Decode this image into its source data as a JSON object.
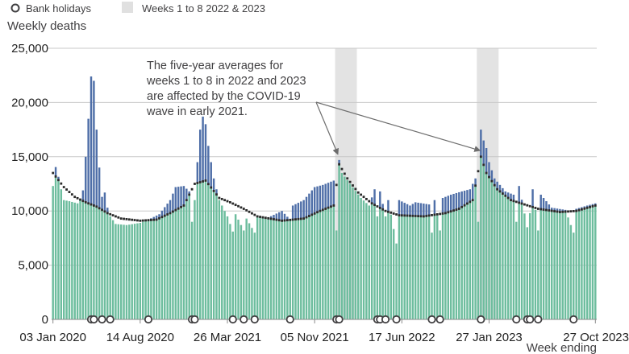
{
  "chart_data": {
    "type": "bar",
    "stacked": true,
    "ylabel": "Weekly deaths",
    "xlabel": "Week ending",
    "ylim": [
      0,
      25000
    ],
    "yticks": [
      0,
      5000,
      10000,
      15000,
      20000,
      25000
    ],
    "ytick_labels": [
      "0",
      "5,000",
      "10,000",
      "15,000",
      "20,000",
      "25,000"
    ],
    "x_start_date": "2020-01-03",
    "x_end_date": "2023-10-27",
    "xtick_labels": [
      {
        "label": "03 Jan 2020",
        "date": "2020-01-03"
      },
      {
        "label": "14 Aug 2020",
        "date": "2020-08-14"
      },
      {
        "label": "26 Mar 2021",
        "date": "2021-03-26"
      },
      {
        "label": "05 Nov 2021",
        "date": "2021-11-05"
      },
      {
        "label": "17 Jun 2022",
        "date": "2022-06-17"
      },
      {
        "label": "27 Jan 2023",
        "date": "2023-01-27"
      },
      {
        "label": "27 Oct 2023",
        "date": "2023-10-27"
      }
    ],
    "grid": true,
    "legend_position": "top-left",
    "legend": [
      {
        "label": "Bank holidays",
        "marker": "hollow-circle"
      },
      {
        "label": "Weeks 1 to 8 2022 & 2023",
        "marker": "grey-square"
      }
    ],
    "colors": {
      "base": "#6dbd9e",
      "excess": "#4f6fa8",
      "average": "#2a2a2a",
      "shade": "#e3e3e3",
      "gridline": "#c8c8c8"
    },
    "shaded_weeks": [
      {
        "start": "2021-12-31",
        "end": "2022-02-18"
      },
      {
        "start": "2022-12-30",
        "end": "2023-02-17"
      }
    ],
    "bank_holidays": [
      "2020-04-10",
      "2020-04-17",
      "2020-05-08",
      "2020-05-29",
      "2020-09-04",
      "2020-12-25",
      "2021-01-01",
      "2021-04-09",
      "2021-05-07",
      "2021-06-04",
      "2021-09-03",
      "2021-12-31",
      "2022-01-07",
      "2022-04-15",
      "2022-04-22",
      "2022-05-06",
      "2022-06-03",
      "2022-09-02",
      "2022-09-23",
      "2023-01-06",
      "2023-04-07",
      "2023-05-05",
      "2023-05-12",
      "2023-06-02",
      "2023-09-01"
    ],
    "deaths_anchors": [
      [
        "2020-01-03",
        12300
      ],
      [
        "2020-01-10",
        14050
      ],
      [
        "2020-01-17",
        13150
      ],
      [
        "2020-01-24",
        12000
      ],
      [
        "2020-01-31",
        11000
      ],
      [
        "2020-02-14",
        10900
      ],
      [
        "2020-03-06",
        10700
      ],
      [
        "2020-03-13",
        11000
      ],
      [
        "2020-03-20",
        11900
      ],
      [
        "2020-03-27",
        15000
      ],
      [
        "2020-04-03",
        18500
      ],
      [
        "2020-04-10",
        22400
      ],
      [
        "2020-04-17",
        22000
      ],
      [
        "2020-04-24",
        17500
      ],
      [
        "2020-05-01",
        14000
      ],
      [
        "2020-05-08",
        11300
      ],
      [
        "2020-05-15",
        11700
      ],
      [
        "2020-05-22",
        10300
      ],
      [
        "2020-05-29",
        9500
      ],
      [
        "2020-06-12",
        8800
      ],
      [
        "2020-07-10",
        8700
      ],
      [
        "2020-08-14",
        8900
      ],
      [
        "2020-09-04",
        9200
      ],
      [
        "2020-10-02",
        9700
      ],
      [
        "2020-10-30",
        11000
      ],
      [
        "2020-11-13",
        12200
      ],
      [
        "2020-12-04",
        12300
      ],
      [
        "2020-12-18",
        11800
      ],
      [
        "2020-12-25",
        9000
      ],
      [
        "2021-01-01",
        11000
      ],
      [
        "2021-01-08",
        14500
      ],
      [
        "2021-01-15",
        17500
      ],
      [
        "2021-01-22",
        18700
      ],
      [
        "2021-01-29",
        18000
      ],
      [
        "2021-02-05",
        16000
      ],
      [
        "2021-02-19",
        13000
      ],
      [
        "2021-03-05",
        11000
      ],
      [
        "2021-03-26",
        9500
      ],
      [
        "2021-04-09",
        8100
      ],
      [
        "2021-04-16",
        9700
      ],
      [
        "2021-05-07",
        8200
      ],
      [
        "2021-05-14",
        9300
      ],
      [
        "2021-06-04",
        8000
      ],
      [
        "2021-06-11",
        9500
      ],
      [
        "2021-07-09",
        9400
      ],
      [
        "2021-08-13",
        10000
      ],
      [
        "2021-09-03",
        9200
      ],
      [
        "2021-09-10",
        10500
      ],
      [
        "2021-10-08",
        11000
      ],
      [
        "2021-11-05",
        12200
      ],
      [
        "2021-11-26",
        12400
      ],
      [
        "2021-12-10",
        12600
      ],
      [
        "2021-12-24",
        12800
      ],
      [
        "2021-12-31",
        8200
      ],
      [
        "2022-01-07",
        14700
      ],
      [
        "2022-01-14",
        13500
      ],
      [
        "2022-02-04",
        12500
      ],
      [
        "2022-03-04",
        11200
      ],
      [
        "2022-03-25",
        10500
      ],
      [
        "2022-04-08",
        12000
      ],
      [
        "2022-04-15",
        9500
      ],
      [
        "2022-04-22",
        11800
      ],
      [
        "2022-05-06",
        9500
      ],
      [
        "2022-05-13",
        11000
      ],
      [
        "2022-06-03",
        7000
      ],
      [
        "2022-06-10",
        11000
      ],
      [
        "2022-07-08",
        10500
      ],
      [
        "2022-07-22",
        10800
      ],
      [
        "2022-08-26",
        10600
      ],
      [
        "2022-09-02",
        8000
      ],
      [
        "2022-09-09",
        11000
      ],
      [
        "2022-09-23",
        8200
      ],
      [
        "2022-09-30",
        11200
      ],
      [
        "2022-10-21",
        11500
      ],
      [
        "2022-11-18",
        11800
      ],
      [
        "2022-12-09",
        12000
      ],
      [
        "2022-12-23",
        13000
      ],
      [
        "2022-12-30",
        9000
      ],
      [
        "2023-01-06",
        17500
      ],
      [
        "2023-01-13",
        16500
      ],
      [
        "2023-01-20",
        15800
      ],
      [
        "2023-01-27",
        14500
      ],
      [
        "2023-02-10",
        13000
      ],
      [
        "2023-03-10",
        11800
      ],
      [
        "2023-03-31",
        11500
      ],
      [
        "2023-04-07",
        9000
      ],
      [
        "2023-04-14",
        12300
      ],
      [
        "2023-05-05",
        8500
      ],
      [
        "2023-05-12",
        9800
      ],
      [
        "2023-05-19",
        12000
      ],
      [
        "2023-06-02",
        8200
      ],
      [
        "2023-06-09",
        11500
      ],
      [
        "2023-07-07",
        10300
      ],
      [
        "2023-08-11",
        10100
      ],
      [
        "2023-09-01",
        8000
      ],
      [
        "2023-09-08",
        10200
      ],
      [
        "2023-10-06",
        10500
      ],
      [
        "2023-10-27",
        10700
      ]
    ],
    "five_year_average_anchors": [
      [
        "2020-01-03",
        13500
      ],
      [
        "2020-01-31",
        12200
      ],
      [
        "2020-02-28",
        11300
      ],
      [
        "2020-03-27",
        10800
      ],
      [
        "2020-04-24",
        10400
      ],
      [
        "2020-05-22",
        9800
      ],
      [
        "2020-06-26",
        9300
      ],
      [
        "2020-08-14",
        9100
      ],
      [
        "2020-09-25",
        9200
      ],
      [
        "2020-10-30",
        9800
      ],
      [
        "2020-12-04",
        10500
      ],
      [
        "2021-01-01",
        12500
      ],
      [
        "2021-01-29",
        12800
      ],
      [
        "2021-03-05",
        11200
      ],
      [
        "2021-04-02",
        10800
      ],
      [
        "2021-05-07",
        10200
      ],
      [
        "2021-06-11",
        9500
      ],
      [
        "2021-08-13",
        9100
      ],
      [
        "2021-10-08",
        9300
      ],
      [
        "2021-11-19",
        10000
      ],
      [
        "2021-12-24",
        10500
      ],
      [
        "2022-01-07",
        14300
      ],
      [
        "2022-01-28",
        13000
      ],
      [
        "2022-02-25",
        11700
      ],
      [
        "2022-04-01",
        10700
      ],
      [
        "2022-05-06",
        10000
      ],
      [
        "2022-06-10",
        9600
      ],
      [
        "2022-08-12",
        9500
      ],
      [
        "2022-10-07",
        9800
      ],
      [
        "2022-11-11",
        10200
      ],
      [
        "2022-12-16",
        11000
      ],
      [
        "2023-01-06",
        15000
      ],
      [
        "2023-01-20",
        13500
      ],
      [
        "2023-02-17",
        12000
      ],
      [
        "2023-03-24",
        11000
      ],
      [
        "2023-04-28",
        10600
      ],
      [
        "2023-06-02",
        10200
      ],
      [
        "2023-07-28",
        9900
      ],
      [
        "2023-09-08",
        10000
      ],
      [
        "2023-10-27",
        10500
      ]
    ],
    "annotation": {
      "lines": [
        "The five-year averages for",
        "weeks 1 to 8 in 2022 and 2023",
        "are affected by the COVID-19",
        "wave in early 2021."
      ],
      "arrow_targets": [
        {
          "date": "2022-01-07",
          "value": 14700
        },
        {
          "date": "2023-01-06",
          "value": 15000
        }
      ]
    }
  }
}
